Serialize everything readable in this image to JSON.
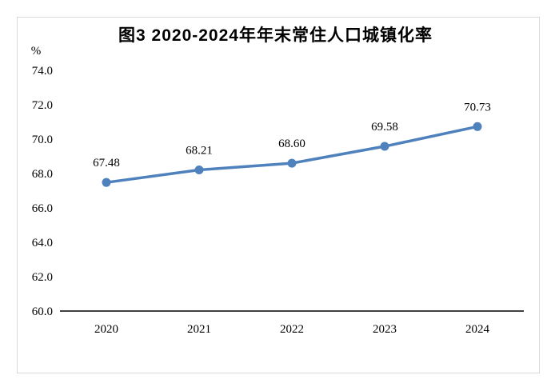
{
  "page": {
    "background_color": "#ffffff",
    "frame_border_color": "#d9d9d9"
  },
  "chart_data": {
    "type": "line",
    "title": "图3 2020-2024年年末常住人口城镇化率",
    "unit": "%",
    "categories": [
      "2020",
      "2021",
      "2022",
      "2023",
      "2024"
    ],
    "series": [
      {
        "name": "年末常住人口城镇化率",
        "values": [
          67.48,
          68.21,
          68.6,
          69.58,
          70.73
        ],
        "data_labels": [
          "67.48",
          "68.21",
          "68.60",
          "69.58",
          "70.73"
        ]
      }
    ],
    "xlabel": "",
    "ylabel": "%",
    "ylim": [
      60,
      74
    ],
    "y_ticks": [
      60,
      62,
      64,
      66,
      68,
      70,
      72,
      74
    ],
    "y_tick_labels": [
      "60.0",
      "62.0",
      "64.0",
      "66.0",
      "68.0",
      "70.0",
      "72.0",
      "74.0"
    ],
    "grid": false,
    "legend_position": "none",
    "line_color": "#4f81bd",
    "marker_color": "#4f81bd",
    "axis_color": "#000000",
    "label_color": "#000000"
  }
}
